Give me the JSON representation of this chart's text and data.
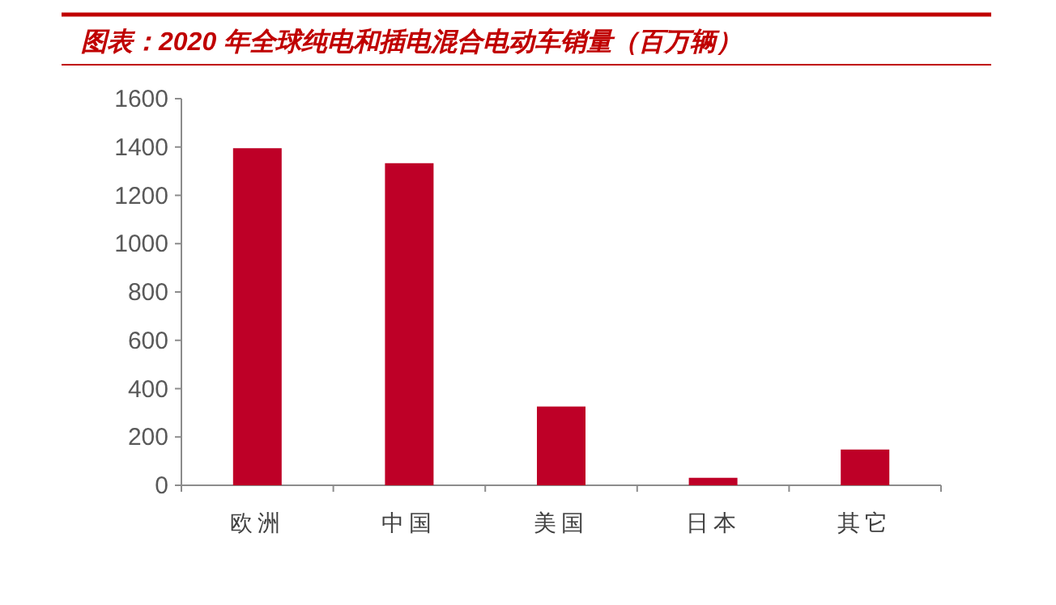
{
  "chart_data": {
    "type": "bar",
    "title": "图表：2020 年全球纯电和插电混合电动车销量（百万辆）",
    "categories": [
      "欧洲",
      "中国",
      "美国",
      "日本",
      "其它"
    ],
    "values": [
      1395,
      1333,
      326,
      31,
      148
    ],
    "color": "#be0027",
    "ylim": [
      0,
      1600
    ],
    "yticks": [
      0,
      200,
      400,
      600,
      800,
      1000,
      1200,
      1400,
      1600
    ],
    "grid": false
  }
}
